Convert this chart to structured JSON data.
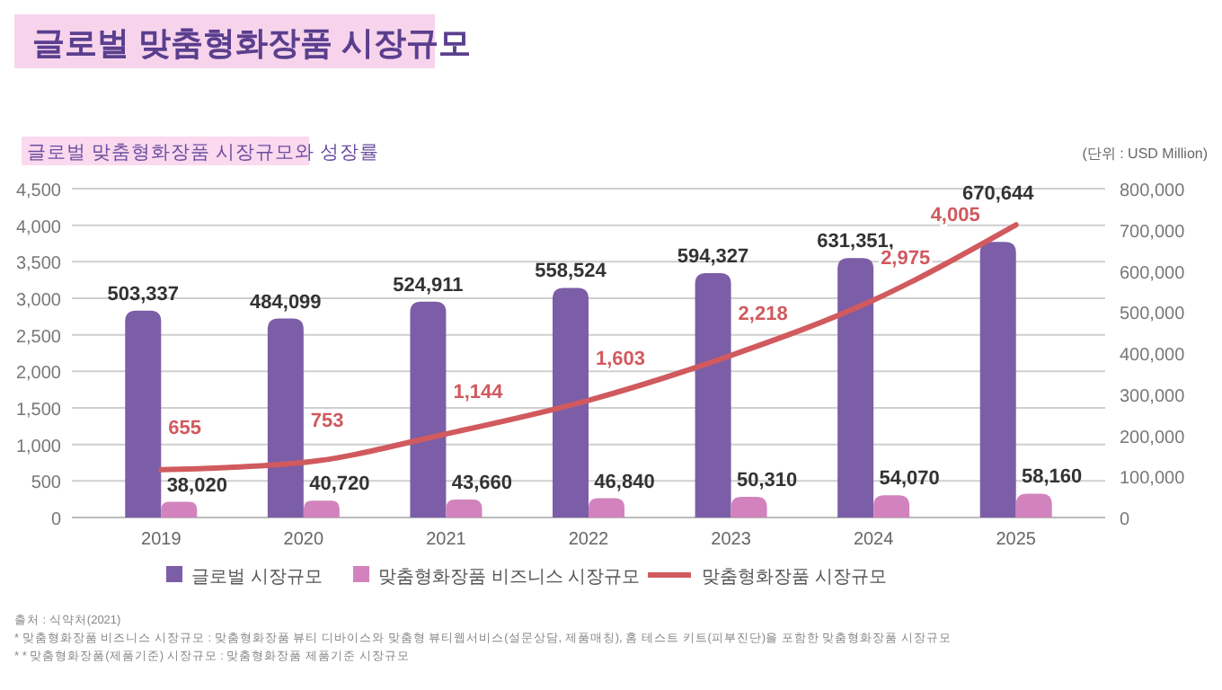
{
  "chart_data": {
    "type": "bar",
    "title": "글로벌 맞춤형화장품 시장규모",
    "subtitle": "글로벌 맞춤형화장품 시장규모와 성장률",
    "annotations": [
      "(단위 : USD Million)",
      "출처 : 식약처(2021)",
      "* 맞춤형화장품 비즈니스 시장규모 : 맞춤형화장품 뷰티 디바이스와 맞춤형 뷰티웹서비스(설문상담, 제품매칭), 홈 테스트 키트(피부진단)을 포함한 맞춤형화장품 시장규모",
      "* * 맞춤형화장품(제품기준) 시장규모 : 맞춤형화장품 제품기준 시장규모"
    ],
    "categories": [
      "2019",
      "2020",
      "2021",
      "2022",
      "2023",
      "2024",
      "2025"
    ],
    "series": [
      {
        "name": "글로벌 시장규모",
        "axis": "y2",
        "color": "#7b5ea7",
        "values": [
          503337,
          484099,
          524911,
          558524,
          594327,
          631351,
          670644
        ],
        "value_labels": [
          "503,337",
          "484,099",
          "524,911",
          "558,524",
          "594,327",
          "631,351,",
          "670,644"
        ]
      },
      {
        "name": "맞춤형화장품 비즈니스 시장규모",
        "axis": "y2",
        "color": "#d283bd",
        "values": [
          38020,
          40720,
          43660,
          46840,
          50310,
          54070,
          58160
        ],
        "value_labels": [
          "38,020",
          "40,720",
          "43,660",
          "46,840",
          "50,310",
          "54,070",
          "58,160"
        ]
      },
      {
        "name": "맞춤형화장품 시장규모",
        "type": "line",
        "axis": "y",
        "color": "#d05a5e",
        "values": [
          655,
          753,
          1144,
          1603,
          2218,
          2975,
          4005
        ],
        "value_labels": [
          "655",
          "753",
          "1,144",
          "1,603",
          "2,218",
          "2,975",
          "4,005"
        ]
      }
    ],
    "ylim": [
      0,
      4500
    ],
    "yticks": [
      {
        "value": 0,
        "label": "0"
      },
      {
        "value": 500,
        "label": "500"
      },
      {
        "value": 1000,
        "label": "1,000"
      },
      {
        "value": 1500,
        "label": "1,500"
      },
      {
        "value": 2000,
        "label": "2,000"
      },
      {
        "value": 2500,
        "label": "2,500"
      },
      {
        "value": 3000,
        "label": "3,000"
      },
      {
        "value": 3500,
        "label": "3,500"
      },
      {
        "value": 4000,
        "label": "4,000"
      },
      {
        "value": 4500,
        "label": "4,500"
      }
    ],
    "y2lim": [
      0,
      800000
    ],
    "y2ticks": [
      {
        "value": 0,
        "label": "0"
      },
      {
        "value": 100000,
        "label": "100,000"
      },
      {
        "value": 200000,
        "label": "200,000"
      },
      {
        "value": 300000,
        "label": "300,000"
      },
      {
        "value": 400000,
        "label": "400,000"
      },
      {
        "value": 500000,
        "label": "500,000"
      },
      {
        "value": 600000,
        "label": "600,000"
      },
      {
        "value": 700000,
        "label": "700,000"
      },
      {
        "value": 800000,
        "label": "800,000"
      }
    ],
    "grid": "y",
    "legend": "bottom",
    "marker": "none",
    "line_style": "solid"
  }
}
